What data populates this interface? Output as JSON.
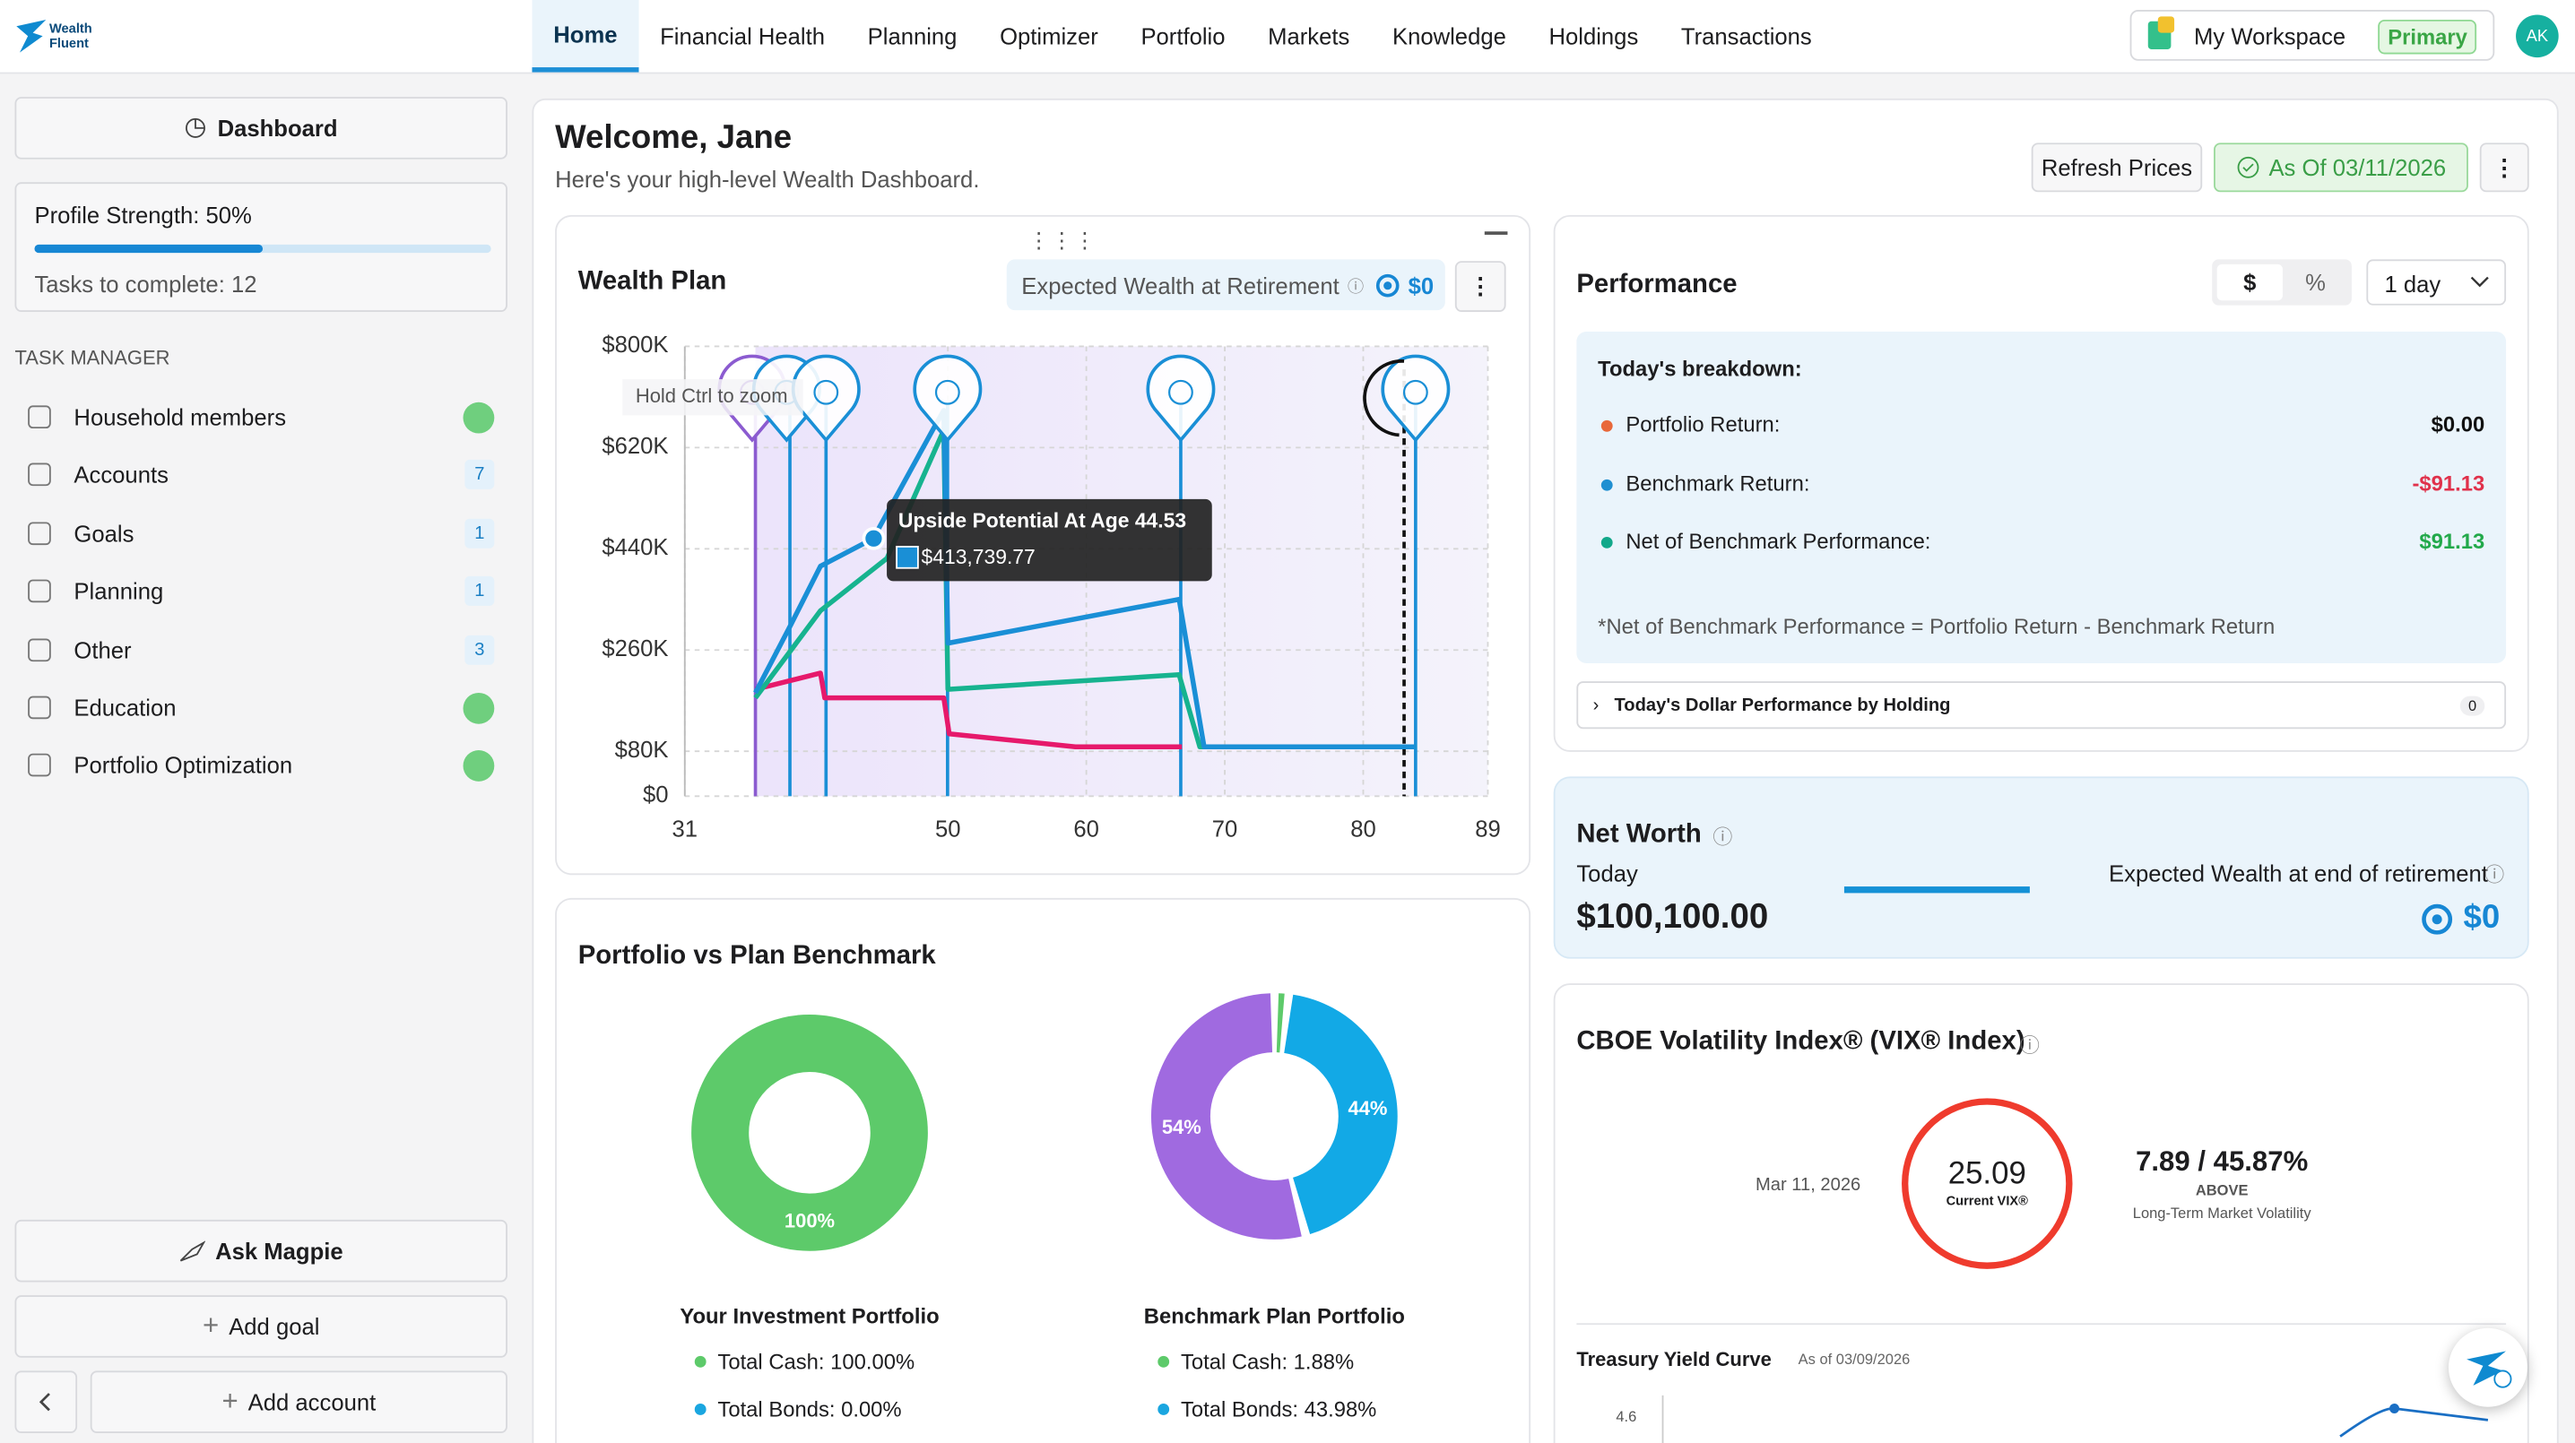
{
  "nav": {
    "logo": [
      "Wealth",
      "Fluent"
    ],
    "tabs": [
      "Home",
      "Financial Health",
      "Planning",
      "Optimizer",
      "Portfolio",
      "Markets",
      "Knowledge",
      "Holdings",
      "Transactions"
    ],
    "workspace": "My Workspace",
    "workspace_badge": "Primary",
    "avatar": "AK"
  },
  "sidebar": {
    "dashboard": "Dashboard",
    "profile_strength": "Profile Strength: 50%",
    "tasks_left": "Tasks to complete: 12",
    "task_manager": "TASK MANAGER",
    "tasks": [
      {
        "label": "Household members",
        "done": true
      },
      {
        "label": "Accounts",
        "count": "7"
      },
      {
        "label": "Goals",
        "count": "1"
      },
      {
        "label": "Planning",
        "count": "1"
      },
      {
        "label": "Other",
        "count": "3"
      },
      {
        "label": "Education",
        "done": true
      },
      {
        "label": "Portfolio Optimization",
        "done": true
      }
    ],
    "ask": "Ask Magpie",
    "add_goal": "Add goal",
    "add_account": "Add account"
  },
  "header": {
    "title": "Welcome, Jane",
    "subtitle": "Here's your high-level Wealth Dashboard.",
    "refresh": "Refresh Prices",
    "as_of": "As Of 03/11/2026"
  },
  "wealth_plan": {
    "type": "line",
    "title": "Wealth Plan",
    "expected_label": "Expected Wealth at Retirement",
    "expected_value": "$0",
    "hint": "Hold Ctrl to zoom",
    "tooltip_title": "Upside Potential At Age 44.53",
    "tooltip_value": "$413,739.77",
    "xlim": [
      31,
      89
    ],
    "xticks": [
      31,
      50,
      60,
      70,
      80,
      89
    ],
    "ylim": [
      0,
      800000
    ],
    "yticks": [
      {
        "value": 0,
        "label": "$0"
      },
      {
        "value": 80000,
        "label": "$80K"
      },
      {
        "value": 260000,
        "label": "$260K"
      },
      {
        "value": 440000,
        "label": "$440K"
      },
      {
        "value": 620000,
        "label": "$620K"
      },
      {
        "value": 800000,
        "label": "$800K"
      }
    ],
    "grid": true,
    "series": [
      {
        "color": "#e6196b",
        "x": [
          36.1,
          40.8,
          41.1,
          49.7,
          50.1,
          59.2,
          66.9
        ],
        "values": [
          190000,
          219000,
          175000,
          175000,
          111000,
          88000,
          88000
        ]
      },
      {
        "color": "#17b38f",
        "x": [
          36.1,
          40.8,
          45.6,
          49.7,
          50.0,
          66.7,
          68.2,
          83.8
        ],
        "values": [
          175000,
          330000,
          423000,
          651000,
          190000,
          216000,
          88000,
          88000
        ]
      },
      {
        "color": "#1a8fd6",
        "x": [
          36.1,
          38.7,
          40.8,
          44.6,
          48.9,
          49.7,
          50.0,
          66.7,
          68.5,
          83.8
        ],
        "values": [
          184000,
          307000,
          409000,
          458000,
          651000,
          686000,
          272000,
          350000,
          88000,
          88000
        ]
      }
    ]
  },
  "benchmark": {
    "title": "Portfolio vs Plan Benchmark",
    "charts": [
      {
        "type": "pie",
        "title": "Your Investment Portfolio",
        "values": [
          100
        ],
        "colors": [
          "#5dca6a"
        ],
        "value_labels": [
          "100%"
        ],
        "legend": [
          {
            "text": "Total Cash: 100.00%",
            "color": "#5dca6a"
          },
          {
            "text": "Total Bonds: 0.00%",
            "color": "#1aa6e0"
          }
        ]
      },
      {
        "type": "pie",
        "title": "Benchmark Plan Portfolio",
        "values": [
          1.88,
          43.98,
          54.14
        ],
        "colors": [
          "#5dca6a",
          "#12a9e6",
          "#a06ae0"
        ],
        "value_labels": [
          null,
          "44%",
          "54%"
        ],
        "legend": [
          {
            "text": "Total Cash: 1.88%",
            "color": "#5dca6a"
          },
          {
            "text": "Total Bonds: 43.98%",
            "color": "#1aa6e0"
          }
        ]
      }
    ]
  },
  "performance": {
    "title": "Performance",
    "toggle": [
      "$",
      "%"
    ],
    "period": "1 day",
    "breakdown": "Today's breakdown:",
    "rows": [
      {
        "label": "Portfolio Return:",
        "value": "$0.00",
        "color": "#e8683a"
      },
      {
        "label": "Benchmark Return:",
        "value": "-$91.13",
        "color": "#1f8fd1"
      },
      {
        "label": "Net of Benchmark Performance:",
        "value": "$91.13",
        "color": "#12a88a"
      }
    ],
    "note": "*Net of Benchmark Performance = Portfolio Return - Benchmark Return",
    "holding": "Today's Dollar Performance by Holding",
    "holding_count": "0"
  },
  "net_worth": {
    "title": "Net Worth",
    "today": "Today",
    "value": "$100,100.00",
    "expected_label": "Expected Wealth at end of retirement",
    "expected_value": "$0"
  },
  "vix": {
    "title": "CBOE Volatility Index® (VIX® Index)",
    "date": "Mar 11, 2026",
    "value": "25.09",
    "value_label": "Current VIX®",
    "range": "7.89 / 45.87%",
    "position": "ABOVE",
    "range_label": "Long-Term Market Volatility"
  },
  "treasury": {
    "title": "Treasury Yield Curve",
    "as_of": "As of 03/09/2026",
    "tick": "4.6"
  }
}
